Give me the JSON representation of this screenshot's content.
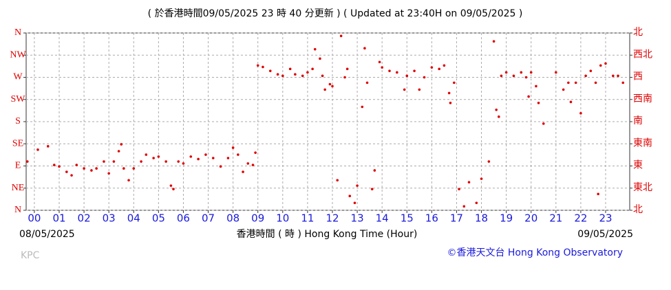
{
  "chart_data": {
    "type": "scatter",
    "title": "( 於香港時間09/05/2025 23 時 40 分更新 ) ( Updated at 23:40H on 09/05/2025 )",
    "x_label": "香港時間 ( 時 ) Hong Kong Time (Hour)",
    "start_date": "08/05/2025",
    "end_date": "09/05/2025",
    "credit": "©香港天文台 Hong Kong Observatory",
    "station": "KPC",
    "color": "#e00000",
    "grid": true,
    "xlim": [
      -0.33,
      23.97
    ],
    "xticks": [
      {
        "value": 0,
        "label": "00"
      },
      {
        "value": 1,
        "label": "01"
      },
      {
        "value": 2,
        "label": "02"
      },
      {
        "value": 3,
        "label": "03"
      },
      {
        "value": 4,
        "label": "04"
      },
      {
        "value": 5,
        "label": "05"
      },
      {
        "value": 6,
        "label": "06"
      },
      {
        "value": 7,
        "label": "07"
      },
      {
        "value": 8,
        "label": "08"
      },
      {
        "value": 9,
        "label": "09"
      },
      10,
      11,
      12,
      13,
      14,
      15,
      16,
      17,
      18,
      19,
      20,
      21,
      22,
      23
    ],
    "ylim": [
      0,
      360
    ],
    "yticks": [
      {
        "value": 360,
        "label": "N"
      },
      {
        "value": 315,
        "label": "NW"
      },
      {
        "value": 270,
        "label": "W"
      },
      {
        "value": 225,
        "label": "SW"
      },
      {
        "value": 180,
        "label": "S"
      },
      {
        "value": 135,
        "label": "SE"
      },
      {
        "value": 90,
        "label": "E"
      },
      {
        "value": 45,
        "label": "NE"
      },
      {
        "value": 0,
        "label": "N"
      }
    ],
    "y2lim": [
      0,
      360
    ],
    "y2ticks": [
      {
        "value": 360,
        "label": "北"
      },
      {
        "value": 315,
        "label": "西北"
      },
      {
        "value": 270,
        "label": "西"
      },
      {
        "value": 225,
        "label": "西南"
      },
      {
        "value": 180,
        "label": "南"
      },
      {
        "value": 135,
        "label": "東南"
      },
      {
        "value": 90,
        "label": "東"
      },
      {
        "value": 45,
        "label": "東北"
      },
      {
        "value": 0,
        "label": "北"
      }
    ],
    "x": [
      -0.28,
      0.14,
      0.55,
      0.8,
      1.0,
      1.3,
      1.5,
      1.7,
      2.0,
      2.3,
      2.5,
      2.8,
      3.0,
      3.2,
      3.4,
      3.5,
      3.6,
      3.8,
      4.0,
      4.3,
      4.5,
      4.8,
      5.0,
      5.3,
      5.5,
      5.6,
      5.8,
      6.0,
      6.3,
      6.6,
      6.9,
      7.2,
      7.5,
      7.8,
      8.0,
      8.2,
      8.4,
      8.6,
      8.8,
      8.9,
      9.0,
      9.2,
      9.5,
      9.8,
      10.0,
      10.3,
      10.5,
      10.8,
      11.0,
      11.2,
      11.3,
      11.5,
      11.6,
      11.7,
      11.9,
      12.0,
      12.2,
      12.35,
      12.5,
      12.6,
      12.7,
      12.9,
      13.0,
      13.2,
      13.3,
      13.4,
      13.6,
      13.7,
      13.9,
      14.0,
      14.3,
      14.6,
      14.9,
      15.0,
      15.3,
      15.5,
      15.7,
      16.0,
      16.3,
      16.5,
      16.7,
      16.75,
      16.9,
      17.1,
      17.3,
      17.5,
      17.8,
      18.0,
      18.3,
      18.5,
      18.6,
      18.7,
      18.8,
      19.0,
      19.3,
      19.6,
      19.8,
      19.9,
      20.0,
      20.2,
      20.3,
      20.5,
      21.0,
      21.3,
      21.5,
      21.6,
      21.8,
      22.0,
      22.2,
      22.4,
      22.6,
      22.7,
      22.8,
      23.0,
      23.3,
      23.5,
      23.7
    ],
    "values": [
      99,
      123,
      130,
      92,
      89,
      78,
      71,
      92,
      85,
      81,
      85,
      99,
      75,
      99,
      120,
      134,
      85,
      61,
      85,
      99,
      113,
      106,
      109,
      99,
      50,
      43,
      99,
      95,
      109,
      104,
      113,
      106,
      89,
      106,
      127,
      113,
      78,
      95,
      92,
      117,
      294,
      291,
      283,
      276,
      273,
      287,
      276,
      273,
      280,
      287,
      327,
      308,
      273,
      245,
      256,
      252,
      61,
      354,
      270,
      287,
      29,
      15,
      50,
      210,
      329,
      259,
      43,
      81,
      301,
      290,
      283,
      280,
      245,
      273,
      283,
      245,
      270,
      290,
      287,
      294,
      238,
      218,
      259,
      43,
      8,
      57,
      15,
      64,
      99,
      343,
      204,
      190,
      273,
      280,
      273,
      280,
      270,
      231,
      280,
      252,
      218,
      176,
      280,
      245,
      259,
      220,
      259,
      197,
      273,
      283,
      259,
      33,
      294,
      298,
      273,
      273,
      259
    ]
  }
}
